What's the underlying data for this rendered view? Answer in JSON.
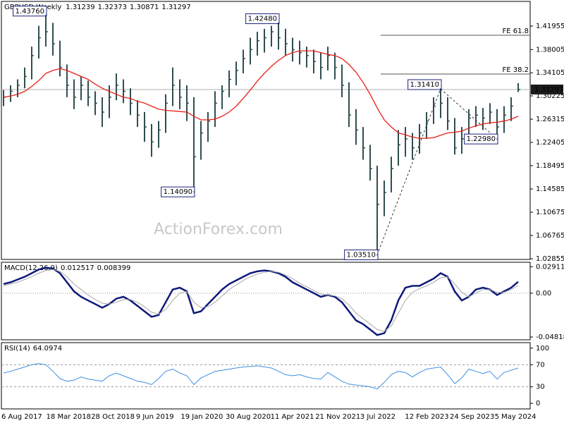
{
  "chart_data": [
    {
      "type": "ohlc",
      "symbol": "GBPUSD,Weekly",
      "ohlc": [
        1.31239,
        1.32373,
        1.30871,
        1.31297
      ],
      "color": "#2f4f4f",
      "close": [
        1.3,
        1.31,
        1.32,
        1.335,
        1.37,
        1.4,
        1.41,
        1.39,
        1.35,
        1.32,
        1.3,
        1.32,
        1.3,
        1.29,
        1.275,
        1.3,
        1.32,
        1.31,
        1.29,
        1.27,
        1.25,
        1.225,
        1.245,
        1.29,
        1.32,
        1.3,
        1.29,
        1.2,
        1.24,
        1.26,
        1.29,
        1.31,
        1.33,
        1.345,
        1.365,
        1.38,
        1.395,
        1.4,
        1.41,
        1.4,
        1.39,
        1.38,
        1.375,
        1.37,
        1.36,
        1.35,
        1.37,
        1.35,
        1.32,
        1.27,
        1.245,
        1.215,
        1.18,
        1.12,
        1.14,
        1.18,
        1.22,
        1.23,
        1.215,
        1.24,
        1.26,
        1.285,
        1.29,
        1.26,
        1.215,
        1.23,
        1.265,
        1.27,
        1.265,
        1.275,
        1.25,
        1.27,
        1.285,
        1.31297
      ],
      "high": [
        1.312,
        1.32,
        1.33,
        1.35,
        1.385,
        1.42,
        1.4376,
        1.425,
        1.395,
        1.355,
        1.33,
        1.335,
        1.328,
        1.31,
        1.3,
        1.32,
        1.34,
        1.33,
        1.315,
        1.295,
        1.275,
        1.255,
        1.26,
        1.305,
        1.35,
        1.33,
        1.32,
        1.3,
        1.26,
        1.275,
        1.31,
        1.32,
        1.345,
        1.36,
        1.38,
        1.4,
        1.41,
        1.415,
        1.42,
        1.4248,
        1.415,
        1.4,
        1.395,
        1.385,
        1.38,
        1.375,
        1.385,
        1.375,
        1.355,
        1.325,
        1.28,
        1.25,
        1.22,
        1.185,
        1.16,
        1.2,
        1.245,
        1.25,
        1.24,
        1.255,
        1.275,
        1.3,
        1.3141,
        1.3,
        1.265,
        1.25,
        1.28,
        1.285,
        1.282,
        1.29,
        1.28,
        1.285,
        1.3,
        1.32373
      ],
      "low": [
        1.285,
        1.292,
        1.3,
        1.315,
        1.33,
        1.365,
        1.385,
        1.37,
        1.335,
        1.3,
        1.28,
        1.295,
        1.285,
        1.27,
        1.25,
        1.265,
        1.295,
        1.29,
        1.27,
        1.25,
        1.225,
        1.2,
        1.215,
        1.24,
        1.285,
        1.28,
        1.26,
        1.1409,
        1.195,
        1.225,
        1.25,
        1.28,
        1.3,
        1.32,
        1.34,
        1.355,
        1.37,
        1.375,
        1.385,
        1.38,
        1.37,
        1.36,
        1.355,
        1.35,
        1.34,
        1.33,
        1.345,
        1.33,
        1.3,
        1.25,
        1.22,
        1.195,
        1.16,
        1.0351,
        1.1,
        1.14,
        1.185,
        1.2,
        1.195,
        1.205,
        1.23,
        1.255,
        1.265,
        1.245,
        1.2037,
        1.205,
        1.225,
        1.25,
        1.245,
        1.255,
        1.2298,
        1.24,
        1.26,
        1.30871
      ],
      "ma": {
        "color": "#e8201a",
        "values": [
          1.3,
          1.302,
          1.305,
          1.31,
          1.318,
          1.328,
          1.34,
          1.345,
          1.348,
          1.345,
          1.34,
          1.335,
          1.33,
          1.322,
          1.315,
          1.31,
          1.305,
          1.3,
          1.298,
          1.293,
          1.29,
          1.285,
          1.28,
          1.278,
          1.277,
          1.276,
          1.275,
          1.268,
          1.262,
          1.262,
          1.263,
          1.268,
          1.275,
          1.285,
          1.298,
          1.312,
          1.327,
          1.34,
          1.352,
          1.362,
          1.37,
          1.375,
          1.378,
          1.378,
          1.378,
          1.375,
          1.372,
          1.37,
          1.365,
          1.355,
          1.342,
          1.325,
          1.305,
          1.282,
          1.262,
          1.25,
          1.24,
          1.237,
          1.233,
          1.231,
          1.231,
          1.232,
          1.236,
          1.24,
          1.241,
          1.243,
          1.248,
          1.252,
          1.255,
          1.257,
          1.258,
          1.26,
          1.263,
          1.268
        ]
      },
      "ylim": [
        1.0274,
        1.461
      ],
      "yticks": [
        1.41955,
        1.38005,
        1.34105,
        1.30225,
        1.26315,
        1.22405,
        1.18495,
        1.14585,
        1.10675,
        1.06765,
        1.02855
      ],
      "annotations": [
        {
          "value": 1.4376,
          "label": "1.43760"
        },
        {
          "value": 1.1409,
          "label": "1.14090"
        },
        {
          "value": 1.4248,
          "label": "1.42480"
        },
        {
          "value": 1.0351,
          "label": "1.03510"
        },
        {
          "value": 1.3141,
          "label": "1.31410"
        },
        {
          "value": 1.2298,
          "label": "1.22980"
        }
      ],
      "fib_levels": [
        {
          "value": 1.4041,
          "label": "FE 61.8"
        },
        {
          "value": 1.339,
          "label": "FE 38.2"
        }
      ],
      "watermark": "ActionForex.com"
    },
    {
      "type": "line",
      "title": "MACD(12,26,9)",
      "series": [
        {
          "color": "#0d1a7a",
          "values": [
            0.01,
            0.012,
            0.015,
            0.018,
            0.022,
            0.026,
            0.028,
            0.027,
            0.022,
            0.012,
            0.002,
            -0.004,
            -0.008,
            -0.012,
            -0.016,
            -0.012,
            -0.006,
            -0.004,
            -0.008,
            -0.014,
            -0.02,
            -0.026,
            -0.024,
            -0.01,
            0.004,
            0.006,
            0.002,
            -0.022,
            -0.02,
            -0.012,
            -0.004,
            0.004,
            0.01,
            0.014,
            0.018,
            0.022,
            0.024,
            0.025,
            0.024,
            0.022,
            0.018,
            0.012,
            0.008,
            0.004,
            0.0,
            -0.004,
            -0.002,
            -0.004,
            -0.01,
            -0.02,
            -0.03,
            -0.034,
            -0.04,
            -0.046,
            -0.044,
            -0.03,
            -0.008,
            0.006,
            0.008,
            0.008,
            0.012,
            0.016,
            0.022,
            0.018,
            0.002,
            -0.008,
            -0.004,
            0.004,
            0.006,
            0.004,
            -0.002,
            0.002,
            0.006,
            0.012517
          ]
        },
        {
          "color": "#a8a8a8",
          "values": [
            0.008,
            0.01,
            0.012,
            0.015,
            0.018,
            0.022,
            0.025,
            0.026,
            0.024,
            0.018,
            0.01,
            0.004,
            -0.002,
            -0.007,
            -0.011,
            -0.012,
            -0.01,
            -0.007,
            -0.007,
            -0.01,
            -0.015,
            -0.021,
            -0.023,
            -0.018,
            -0.008,
            0.0,
            0.002,
            -0.01,
            -0.016,
            -0.015,
            -0.01,
            -0.003,
            0.004,
            0.009,
            0.014,
            0.018,
            0.021,
            0.023,
            0.024,
            0.023,
            0.02,
            0.016,
            0.011,
            0.007,
            0.003,
            -0.001,
            -0.002,
            -0.003,
            -0.006,
            -0.013,
            -0.022,
            -0.028,
            -0.034,
            -0.04,
            -0.042,
            -0.036,
            -0.022,
            -0.008,
            0.001,
            0.005,
            0.008,
            0.012,
            0.017,
            0.018,
            0.01,
            0.001,
            -0.004,
            0.0,
            0.004,
            0.004,
            0.001,
            0.001,
            0.004,
            0.008399
          ]
        }
      ],
      "ylim": [
        -0.0513,
        0.034
      ],
      "yticks": [
        0.029114,
        {
          "value": 0,
          "label": "0.00"
        },
        -0.048189
      ],
      "levels": [
        0
      ]
    },
    {
      "type": "line",
      "title": "RSI(14)",
      "series": [
        {
          "color": "#3d8fe0",
          "values": [
            55,
            58,
            62,
            66,
            70,
            72,
            70,
            58,
            45,
            40,
            42,
            48,
            44,
            42,
            40,
            50,
            55,
            50,
            45,
            40,
            38,
            34,
            45,
            58,
            62,
            55,
            50,
            34,
            46,
            52,
            58,
            60,
            62,
            64,
            66,
            67,
            68,
            66,
            64,
            58,
            52,
            50,
            52,
            48,
            45,
            44,
            56,
            48,
            40,
            35,
            33,
            32,
            30,
            26,
            38,
            52,
            58,
            56,
            48,
            56,
            62,
            64,
            66,
            52,
            36,
            46,
            62,
            58,
            54,
            58,
            44,
            56,
            60,
            64.0974
          ]
        }
      ],
      "ylim": [
        -10,
        110
      ],
      "yticks": [
        100,
        70,
        30,
        0
      ],
      "levels": [
        70,
        30
      ],
      "xtick_labels": [
        "6 Aug 2017",
        "18 Mar 2018",
        "28 Oct 2018",
        "9 Jun 2019",
        "19 Jan 2020",
        "30 Aug 2020",
        "11 Apr 2021",
        "21 Nov 2021",
        "3 Jul 2022",
        "12 Feb 2023",
        "24 Sep 2023",
        "5 May 2024"
      ]
    }
  ]
}
